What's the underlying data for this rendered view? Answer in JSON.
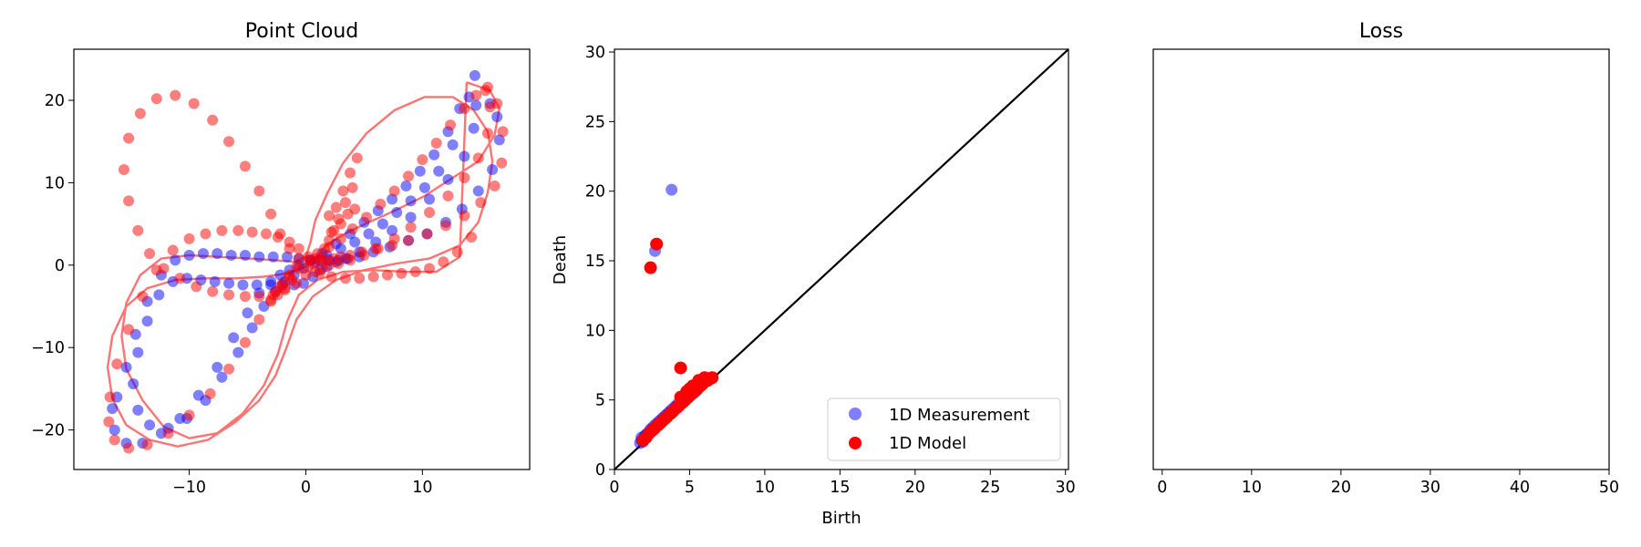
{
  "chart_data": [
    {
      "type": "scatter",
      "title": "Point Cloud",
      "xlabel": "",
      "ylabel": "",
      "xlim": [
        -19.9,
        19.2
      ],
      "ylim": [
        -24.8,
        26.2
      ],
      "xticks": [
        -10,
        0,
        10
      ],
      "yticks": [
        -20,
        -10,
        0,
        10,
        20
      ],
      "grid": false,
      "colors": {
        "measurement": "#0000ff",
        "model": "#ff0000",
        "curve": "#ff0000"
      },
      "curve": {
        "x": [
          13.8,
          15.8,
          16.6,
          16.2,
          14.8,
          12.6,
          10.2,
          7.6,
          5.4,
          3.6,
          2.4,
          1.6,
          1.0,
          0.0,
          -1.6,
          -3.6,
          -6.0,
          -8.6,
          -11.2,
          -13.6,
          -15.4,
          -16.6,
          -17.0,
          -16.6,
          -15.4,
          -13.4,
          -11.0,
          -8.4,
          -6.0,
          -4.0,
          -2.6,
          -1.6,
          -0.8,
          0.6,
          2.6,
          5.0,
          7.8,
          10.6,
          13.2,
          14.8,
          15.6,
          16.0,
          15.6,
          14.4,
          12.6,
          10.2,
          7.6,
          5.2,
          3.2,
          1.8,
          0.8,
          0.4,
          0.0,
          -1.0,
          -2.6,
          -4.8,
          -7.4,
          -10.0,
          -12.4,
          -14.2,
          -15.4,
          -15.8,
          -15.4,
          -14.0,
          -12.2,
          -10.0,
          -7.6,
          -5.4,
          -3.6,
          -2.4,
          -1.6,
          -0.6,
          1.0,
          3.2,
          5.8,
          8.6,
          11.2,
          13.2,
          13.8
        ],
        "y": [
          22.2,
          21.2,
          19.0,
          15.8,
          12.6,
          10.6,
          8.4,
          6.6,
          5.2,
          4.0,
          3.0,
          2.2,
          1.0,
          -0.2,
          -1.0,
          -1.4,
          -1.6,
          -1.6,
          -1.8,
          -2.8,
          -5.0,
          -8.6,
          -12.4,
          -16.2,
          -19.4,
          -21.2,
          -22.0,
          -21.2,
          -19.0,
          -16.4,
          -13.4,
          -9.8,
          -6.6,
          -3.8,
          -1.8,
          -0.6,
          0.2,
          0.8,
          2.4,
          5.2,
          8.8,
          12.6,
          16.2,
          18.8,
          20.4,
          20.4,
          18.8,
          16.0,
          12.4,
          8.6,
          5.4,
          2.8,
          1.0,
          0.4,
          0.6,
          0.8,
          1.0,
          1.2,
          0.8,
          -1.2,
          -4.6,
          -8.6,
          -12.6,
          -16.4,
          -19.6,
          -21.0,
          -20.4,
          -18.0,
          -14.6,
          -10.8,
          -6.8,
          -3.6,
          -1.8,
          -0.8,
          -0.6,
          -0.8,
          -0.8,
          1.0,
          22.2
        ]
      },
      "series": [
        {
          "name": "measurement",
          "x": [
            14.5,
            15.8,
            16.4,
            16.6,
            16.0,
            14.8,
            13.4,
            12.0,
            10.4,
            8.8,
            7.2,
            5.8,
            4.6,
            3.6,
            2.8,
            2.0,
            1.2,
            0.4,
            -0.6,
            -1.6,
            -2.8,
            -4.0,
            -5.2,
            -6.4,
            -7.6,
            -8.8,
            -10.0,
            -11.2,
            -12.4,
            -13.6,
            -14.6,
            -15.4,
            -16.2,
            -16.6,
            -16.4,
            -15.4,
            -14.0,
            -12.4,
            -10.8,
            -9.2,
            -7.6,
            -6.2,
            -5.0,
            -4.0,
            -3.0,
            -2.2,
            -1.4,
            -0.6,
            0.4,
            1.4,
            2.6,
            3.8,
            5.0,
            6.2,
            7.4,
            8.6,
            9.8,
            11.0,
            12.2,
            13.2,
            14.0,
            14.6,
            14.4,
            13.6,
            12.2,
            10.6,
            9.0,
            7.4,
            6.0,
            4.6,
            3.4,
            2.6,
            1.8,
            1.2,
            0.6,
            -0.2,
            -1.0,
            -2.0,
            -3.0,
            -4.2,
            -5.4,
            -6.6,
            -7.8,
            -9.0,
            -10.2,
            -11.4,
            -12.6,
            -13.6,
            -14.4,
            -14.8,
            -14.4,
            -13.4,
            -11.8,
            -10.2,
            -8.6,
            -7.2,
            -5.8,
            -4.6,
            -3.6,
            -2.6,
            -1.8,
            -1.0,
            -0.2,
            0.8,
            1.8,
            3.0,
            4.2,
            5.4,
            6.6,
            7.8,
            9.0,
            10.2,
            11.4,
            12.6
          ],
          "y": [
            23.0,
            19.6,
            18.0,
            15.2,
            11.6,
            9.0,
            6.8,
            5.2,
            3.8,
            3.0,
            2.2,
            1.6,
            1.0,
            0.8,
            0.6,
            0.6,
            0.6,
            0.6,
            0.8,
            1.0,
            1.0,
            1.0,
            1.2,
            1.2,
            1.4,
            1.4,
            1.2,
            0.6,
            -1.2,
            -4.4,
            -8.4,
            -12.4,
            -16.0,
            -17.4,
            -20.0,
            -21.6,
            -21.6,
            -20.4,
            -18.6,
            -15.8,
            -12.4,
            -8.8,
            -5.8,
            -3.4,
            -2.0,
            -1.2,
            -0.6,
            0.0,
            0.6,
            1.4,
            2.6,
            3.8,
            5.2,
            6.6,
            8.0,
            9.6,
            11.4,
            13.4,
            16.2,
            19.0,
            20.4,
            19.4,
            16.6,
            13.2,
            10.4,
            8.0,
            5.8,
            4.2,
            2.8,
            1.6,
            0.8,
            0.4,
            -0.2,
            -0.6,
            -1.4,
            -2.2,
            -2.4,
            -2.4,
            -2.4,
            -2.4,
            -2.4,
            -2.2,
            -2.0,
            -1.8,
            -1.6,
            -2.0,
            -3.6,
            -6.8,
            -10.6,
            -14.4,
            -17.6,
            -19.4,
            -19.8,
            -18.6,
            -16.4,
            -13.6,
            -10.6,
            -7.6,
            -5.0,
            -3.2,
            -2.0,
            -1.2,
            -0.4,
            0.4,
            1.2,
            2.0,
            2.8,
            3.8,
            5.0,
            6.4,
            7.8,
            9.4,
            11.4,
            14.6
          ]
        },
        {
          "name": "model",
          "x": [
            15.6,
            16.4,
            16.9,
            16.8,
            16.2,
            15.0,
            13.6,
            12.0,
            10.4,
            8.8,
            7.4,
            6.0,
            4.8,
            3.8,
            3.0,
            2.4,
            1.8,
            1.4,
            0.8,
            0.2,
            -0.6,
            -1.4,
            -2.4,
            -3.4,
            -4.6,
            -5.8,
            -7.2,
            -8.6,
            -10.0,
            -11.4,
            -12.8,
            -14.0,
            -15.2,
            -16.2,
            -16.8,
            -16.9,
            -16.4,
            -15.2,
            -13.6,
            -11.8,
            -10.0,
            -8.2,
            -6.6,
            -5.2,
            -4.0,
            -3.0,
            -2.2,
            -1.4,
            -0.6,
            0.2,
            1.0,
            2.0,
            3.0,
            4.0,
            5.2,
            6.4,
            7.6,
            8.8,
            10.0,
            11.2,
            12.4,
            13.6,
            14.6,
            15.4,
            15.8,
            15.6,
            14.8,
            13.6,
            12.2,
            10.6,
            9.0,
            7.6,
            6.2,
            5.0,
            3.8,
            2.8,
            2.0,
            1.4,
            0.8,
            0.0,
            -0.8,
            -1.8,
            -2.8,
            -4.0,
            -5.2,
            -6.6,
            -8.0,
            -9.4,
            -10.8,
            -12.2,
            -13.4,
            -14.4,
            -15.2,
            -15.6,
            -15.2,
            -14.2,
            -12.8,
            -11.2,
            -9.6,
            -8.0,
            -6.6,
            -5.2,
            -4.0,
            -3.0,
            -2.2,
            -1.4,
            -0.6,
            0.2,
            1.2,
            2.2,
            3.4,
            4.6,
            5.8,
            7.0,
            8.2,
            9.4,
            10.6,
            11.8,
            13.0,
            14.2,
            2.0,
            2.6,
            3.2,
            3.8,
            4.4,
            2.2,
            2.8,
            3.4,
            4.0,
            1.6,
            2.0,
            2.4,
            3.0,
            3.6,
            4.2,
            -1.2,
            -1.8,
            -2.4,
            -3.0,
            -2.6,
            -2.0,
            -1.4,
            -0.8,
            0.6,
            1.2
          ],
          "y": [
            21.6,
            19.6,
            16.2,
            12.4,
            9.6,
            7.6,
            6.0,
            4.8,
            3.8,
            3.0,
            2.4,
            2.0,
            1.6,
            1.2,
            1.0,
            0.8,
            0.6,
            0.6,
            0.8,
            1.0,
            2.0,
            2.8,
            3.4,
            3.8,
            4.0,
            4.2,
            4.2,
            3.8,
            3.2,
            1.8,
            -0.6,
            -3.8,
            -7.8,
            -12.0,
            -16.0,
            -19.0,
            -21.2,
            -22.2,
            -21.8,
            -20.4,
            -18.2,
            -15.6,
            -12.6,
            -9.4,
            -6.6,
            -4.2,
            -2.6,
            -1.4,
            -0.4,
            0.6,
            1.4,
            2.2,
            3.2,
            4.4,
            5.8,
            7.4,
            9.0,
            10.8,
            12.8,
            14.8,
            17.0,
            19.0,
            20.6,
            21.2,
            19.2,
            16.0,
            13.0,
            10.6,
            8.4,
            6.4,
            4.6,
            3.2,
            2.0,
            1.2,
            0.6,
            0.2,
            0.0,
            -0.4,
            -0.8,
            -1.2,
            -2.2,
            -3.0,
            -3.6,
            -3.8,
            -3.8,
            -3.6,
            -3.2,
            -2.6,
            -1.6,
            -0.4,
            1.4,
            4.2,
            7.8,
            11.6,
            15.4,
            18.4,
            20.2,
            20.6,
            19.6,
            17.6,
            15.0,
            12.0,
            9.0,
            6.2,
            3.8,
            2.0,
            0.8,
            -0.2,
            -1.0,
            -1.4,
            -1.6,
            -1.6,
            -1.4,
            -1.2,
            -1.0,
            -0.8,
            -0.4,
            0.4,
            1.6,
            3.4,
            6.0,
            7.0,
            9.0,
            11.2,
            13.0,
            4.0,
            5.6,
            7.6,
            9.4,
            2.0,
            3.0,
            4.2,
            5.0,
            6.2,
            6.8,
            -1.8,
            -2.8,
            -3.6,
            -4.4,
            -3.2,
            -2.2,
            -1.2,
            -0.2,
            0.2,
            0.8
          ]
        }
      ]
    },
    {
      "type": "scatter",
      "title": "",
      "xlabel": "Birth",
      "ylabel": "Death",
      "xlim": [
        0,
        30.2
      ],
      "ylim": [
        0,
        30.2
      ],
      "xticks": [
        0,
        5,
        10,
        15,
        20,
        25,
        30
      ],
      "yticks": [
        0,
        5,
        10,
        15,
        20,
        25,
        30
      ],
      "grid": false,
      "legend": "bottom-right",
      "diagonal": {
        "color": "#000000"
      },
      "series": [
        {
          "name": "1D Measurement",
          "color": "#0000ff",
          "alpha": 0.5,
          "x": [
            3.8,
            2.7,
            1.7,
            1.8,
            1.9,
            2.0,
            2.2,
            2.4,
            2.6,
            2.8,
            3.0,
            3.2,
            3.4,
            3.6,
            3.8,
            4.0,
            4.2,
            1.8,
            2.1,
            2.5,
            2.9,
            3.3,
            3.7,
            4.1,
            4.5,
            2.3,
            3.1,
            3.5,
            4.3,
            4.8,
            5.0,
            5.3,
            5.5
          ],
          "y": [
            20.1,
            15.7,
            1.9,
            2.3,
            2.0,
            2.4,
            2.6,
            2.9,
            3.1,
            3.3,
            3.5,
            3.7,
            3.9,
            4.1,
            4.3,
            4.5,
            4.7,
            2.1,
            2.5,
            2.9,
            3.3,
            3.7,
            4.1,
            4.5,
            4.8,
            2.7,
            3.5,
            3.9,
            4.6,
            5.1,
            5.3,
            5.5,
            5.7
          ]
        },
        {
          "name": "1D Model",
          "color": "#ff0000",
          "alpha": 1,
          "x": [
            2.8,
            2.4,
            4.4,
            1.9,
            2.1,
            2.3,
            2.5,
            2.7,
            2.9,
            3.1,
            3.3,
            3.5,
            3.7,
            3.9,
            4.1,
            4.3,
            4.5,
            4.7,
            4.9,
            5.1,
            5.3,
            5.5,
            5.7,
            5.9,
            6.1,
            6.3,
            6.5,
            2.6,
            3.0,
            3.4,
            3.8,
            4.2,
            4.6,
            5.0,
            5.4,
            5.8,
            6.2,
            4.8,
            5.2,
            5.6,
            6.0,
            4.4,
            5.0,
            5.6
          ],
          "y": [
            16.2,
            14.5,
            7.3,
            2.1,
            2.3,
            2.6,
            2.8,
            3.0,
            3.2,
            3.4,
            3.6,
            3.8,
            4.0,
            4.2,
            4.4,
            4.6,
            4.8,
            5.0,
            5.2,
            5.4,
            5.6,
            5.8,
            6.0,
            6.2,
            6.4,
            6.5,
            6.6,
            2.9,
            3.3,
            3.7,
            4.1,
            4.5,
            4.9,
            5.3,
            5.7,
            6.1,
            6.4,
            5.6,
            6.0,
            6.4,
            6.6,
            5.2,
            5.8,
            6.3
          ]
        }
      ]
    },
    {
      "type": "line",
      "title": "Loss",
      "xlabel": "",
      "ylabel": "",
      "xlim": [
        -1,
        50
      ],
      "xticks": [
        0,
        10,
        20,
        30,
        40,
        50
      ],
      "yticks": [],
      "grid": false,
      "series": []
    }
  ]
}
